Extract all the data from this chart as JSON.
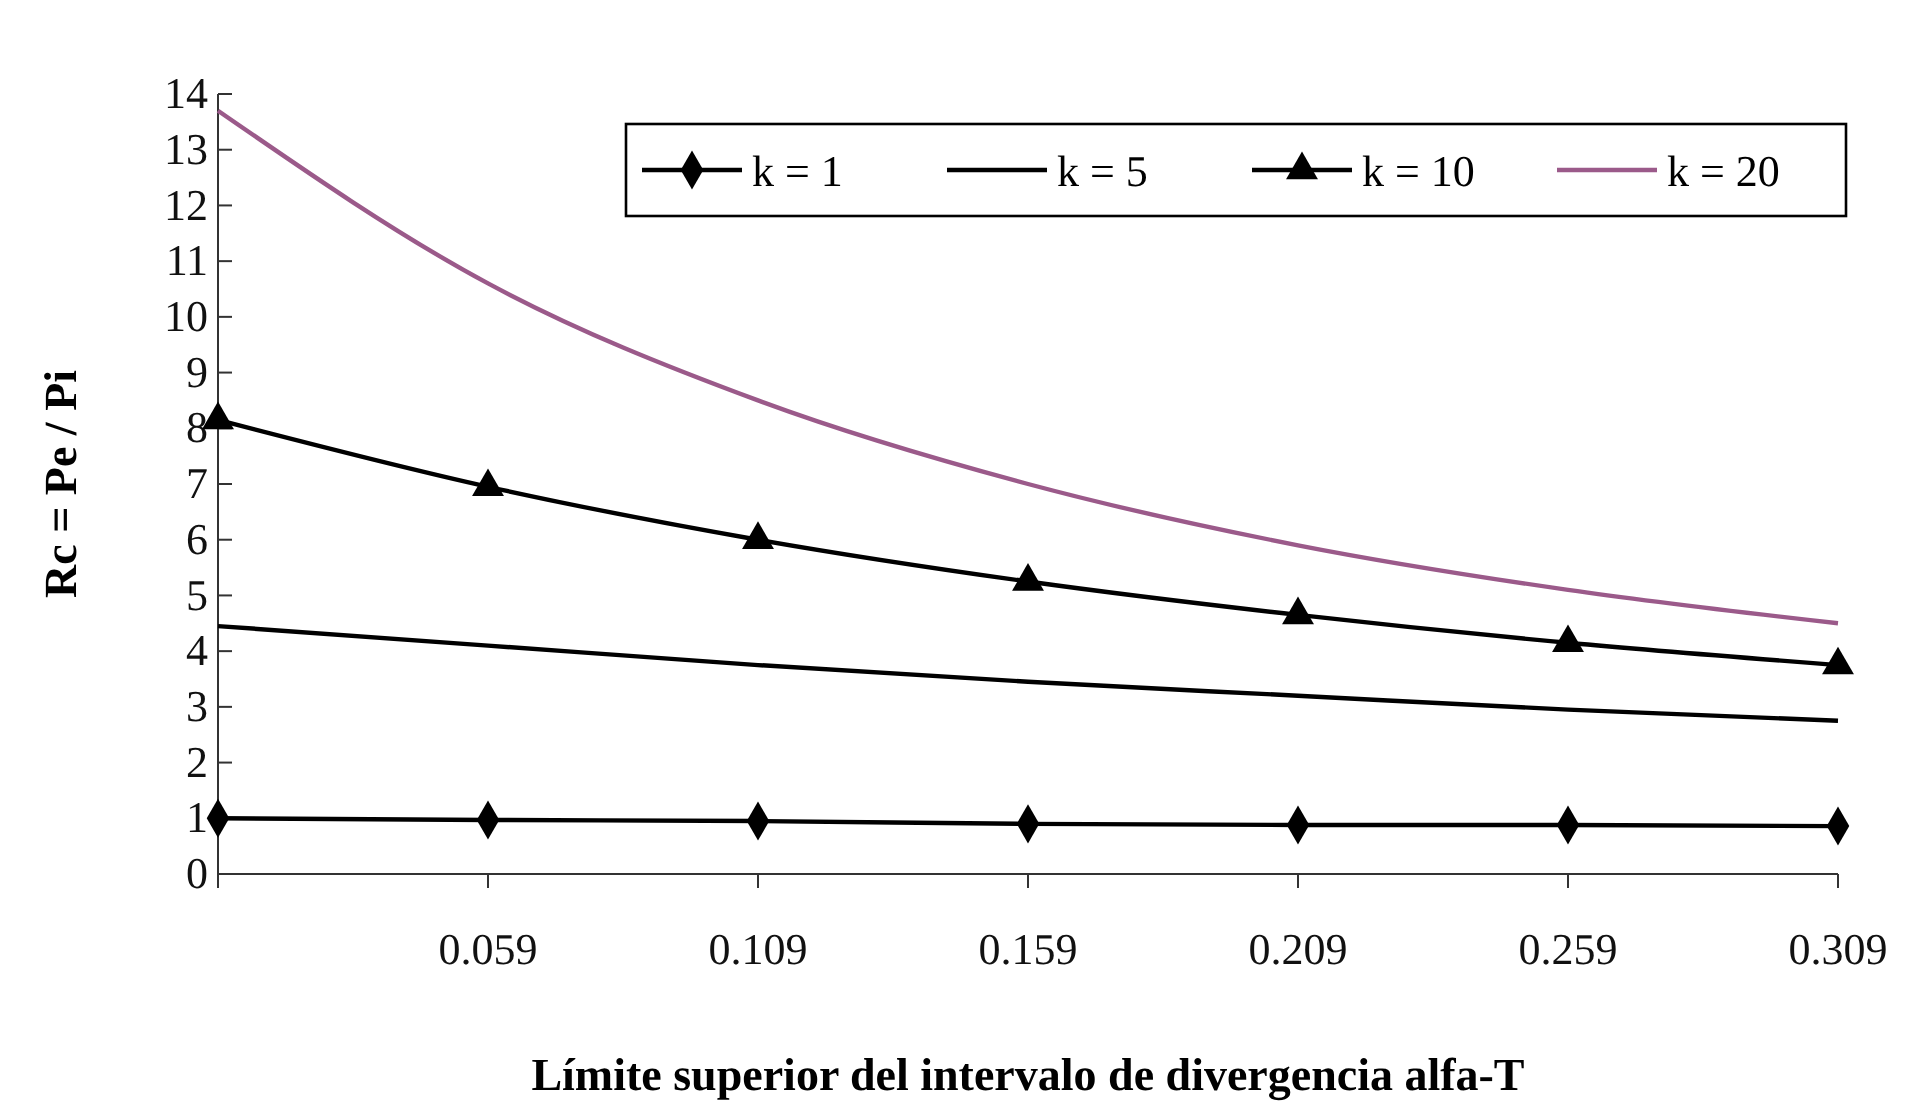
{
  "chart_data": {
    "type": "line",
    "xlabel": "Límite superior del intervalo de divergencia alfa-T",
    "ylabel": "Rc = Pe / Pi",
    "x": [
      0.009,
      0.059,
      0.109,
      0.159,
      0.209,
      0.259,
      0.309
    ],
    "xlim": [
      0.009,
      0.309
    ],
    "xticks": [
      {
        "value": 0.009,
        "label": null
      },
      0.059,
      0.109,
      0.159,
      0.209,
      0.259,
      0.309
    ],
    "ylim": [
      0,
      14
    ],
    "yticks": [
      0,
      1,
      2,
      3,
      4,
      5,
      6,
      7,
      8,
      9,
      10,
      11,
      12,
      13,
      14
    ],
    "legend": "top right",
    "grid": false,
    "series": [
      {
        "name": "k = 1",
        "color": "#000000",
        "marker": "diamond",
        "values": [
          1.0,
          0.97,
          0.95,
          0.9,
          0.88,
          0.88,
          0.86
        ]
      },
      {
        "name": "k = 5",
        "color": "#000000",
        "marker": "none",
        "values": [
          4.45,
          4.1,
          3.75,
          3.45,
          3.2,
          2.95,
          2.75
        ]
      },
      {
        "name": "k = 10",
        "color": "#000000",
        "marker": "triangle",
        "values": [
          8.15,
          6.95,
          6.0,
          5.25,
          4.65,
          4.15,
          3.75
        ]
      },
      {
        "name": "k = 20",
        "color": "#9b5a8a",
        "marker": "none",
        "values": [
          13.7,
          10.6,
          8.5,
          7.0,
          5.9,
          5.1,
          4.5
        ]
      }
    ]
  }
}
